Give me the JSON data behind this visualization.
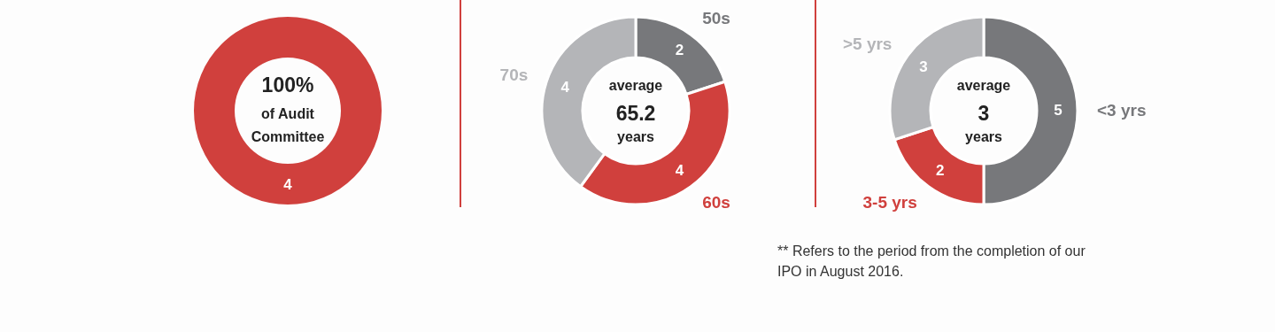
{
  "chart_data": [
    {
      "type": "donut",
      "categories": [
        null
      ],
      "values": [
        4
      ],
      "colors": [
        "#d0403d"
      ],
      "data_labels": true,
      "annotations": [
        "100%",
        "of Audit",
        "Committee"
      ]
    },
    {
      "type": "donut",
      "categories": [
        "50s",
        "60s",
        "70s"
      ],
      "values": [
        2,
        4,
        4
      ],
      "colors": [
        "#77787b",
        "#d0403d",
        "#b4b5b8"
      ],
      "data_labels": true,
      "annotations": [
        "average",
        "65.2",
        "years"
      ]
    },
    {
      "type": "donut",
      "categories": [
        "<3 yrs",
        "3-5 yrs",
        ">5 yrs"
      ],
      "values": [
        5,
        2,
        3
      ],
      "colors": [
        "#77787b",
        "#d0403d",
        "#b4b5b8"
      ],
      "data_labels": true,
      "annotations": [
        "average",
        "3",
        "years",
        "** Refers to the period from the completion of our IPO in August 2016."
      ]
    }
  ]
}
